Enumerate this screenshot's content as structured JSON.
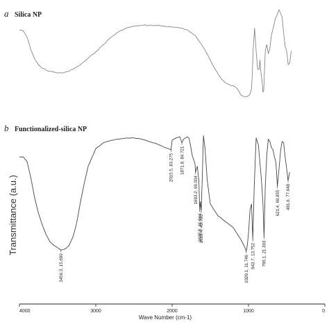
{
  "chart_data": [
    {
      "type": "line",
      "panel_letter": "a",
      "title": "Silica NP",
      "xlabel": "Wave Number (cm-1)",
      "ylabel": "Transmittance (a.u.)",
      "xlim": [
        4000,
        0
      ],
      "x_ticks": [
        4000,
        3000,
        2000,
        1000,
        0
      ],
      "series": [
        {
          "x": [
            4000,
            3950,
            3900,
            3850,
            3800,
            3750,
            3700,
            3650,
            3600,
            3550,
            3500,
            3450,
            3400,
            3350,
            3300,
            3200,
            3100,
            3000,
            2900,
            2800,
            2700,
            2600,
            2500,
            2400,
            2300,
            2200,
            2100,
            2000,
            1900,
            1800,
            1750,
            1700,
            1650,
            1600,
            1550,
            1500,
            1450,
            1400,
            1350,
            1300,
            1250,
            1200,
            1150,
            1100,
            1080,
            1050,
            1000,
            980,
            960,
            950,
            940,
            920,
            900,
            880,
            860,
            850,
            840,
            820,
            810,
            800,
            790,
            780,
            760,
            740,
            720,
            700,
            650,
            600,
            560,
            540,
            520,
            500,
            480,
            460,
            440
          ],
          "y": [
            0.78,
            0.77,
            0.7,
            0.56,
            0.46,
            0.4,
            0.36,
            0.34,
            0.33,
            0.32,
            0.31,
            0.31,
            0.32,
            0.33,
            0.35,
            0.4,
            0.47,
            0.54,
            0.62,
            0.7,
            0.76,
            0.8,
            0.82,
            0.83,
            0.83,
            0.83,
            0.82,
            0.81,
            0.8,
            0.78,
            0.75,
            0.72,
            0.66,
            0.6,
            0.53,
            0.45,
            0.37,
            0.3,
            0.24,
            0.2,
            0.18,
            0.17,
            0.14,
            0.07,
            0.06,
            0.05,
            0.06,
            0.08,
            0.14,
            0.3,
            0.55,
            0.8,
            0.55,
            0.35,
            0.35,
            0.45,
            0.34,
            0.2,
            0.1,
            0.12,
            0.35,
            0.55,
            0.62,
            0.52,
            0.58,
            0.72,
            0.9,
            1.0,
            0.92,
            0.75,
            0.6,
            0.55,
            0.4,
            0.42,
            0.55
          ]
        }
      ]
    },
    {
      "type": "line",
      "panel_letter": "b",
      "title": "Functionalized-silica NP",
      "xlabel": "Wave Number (cm-1)",
      "ylabel": "Transmittance (a.u.)",
      "xlim": [
        4000,
        0
      ],
      "x_ticks": [
        4000,
        3000,
        2000,
        1000,
        0
      ],
      "series": [
        {
          "x": [
            4000,
            3950,
            3900,
            3850,
            3800,
            3750,
            3700,
            3650,
            3600,
            3550,
            3500,
            3456.3,
            3400,
            3350,
            3300,
            3250,
            3200,
            3150,
            3100,
            3000,
            2900,
            2800,
            2700,
            2600,
            2500,
            2400,
            2300,
            2200,
            2100,
            2050,
            2015.5,
            2000,
            1950,
            1900,
            1871.8,
            1850,
            1800,
            1780,
            1760,
            1740,
            1720,
            1700,
            1693.2,
            1670,
            1650,
            1638.8,
            1630,
            1619.4,
            1605,
            1590,
            1570,
            1540,
            1500,
            1400,
            1300,
            1200,
            1150,
            1100,
            1060,
            1040,
            1029.1,
            1015,
            1000,
            980,
            960,
            943.7,
            925,
            900,
            870,
            850,
            830,
            810,
            796.1,
            780,
            760,
            740,
            720,
            700,
            680,
            660,
            640,
            621.4,
            600,
            580,
            560,
            540,
            520,
            500,
            481.6,
            460
          ],
          "y": [
            0.8,
            0.8,
            0.76,
            0.62,
            0.45,
            0.32,
            0.22,
            0.14,
            0.08,
            0.05,
            0.03,
            0.01,
            0.02,
            0.05,
            0.12,
            0.24,
            0.42,
            0.58,
            0.72,
            0.87,
            0.92,
            0.94,
            0.95,
            0.96,
            0.96,
            0.95,
            0.93,
            0.91,
            0.88,
            0.87,
            0.86,
            0.94,
            0.96,
            0.97,
            0.92,
            0.95,
            0.97,
            0.96,
            0.9,
            0.82,
            0.78,
            0.74,
            0.67,
            0.72,
            0.6,
            0.35,
            0.42,
            0.34,
            0.62,
            0.98,
            0.88,
            0.6,
            0.4,
            0.3,
            0.25,
            0.2,
            0.15,
            0.1,
            0.05,
            0.02,
            0.0,
            0.05,
            0.15,
            0.35,
            0.4,
            0.1,
            0.55,
            0.96,
            0.9,
            0.75,
            0.6,
            0.4,
            0.12,
            0.55,
            0.82,
            0.95,
            0.93,
            0.88,
            0.86,
            0.8,
            0.75,
            0.55,
            0.7,
            0.85,
            0.93,
            0.92,
            0.8,
            0.7,
            0.6,
            0.67
          ]
        }
      ],
      "annotations": [
        {
          "x": 3456.3,
          "text": "3456.3, 15.690"
        },
        {
          "x": 2015.5,
          "text": "2015.5, 83.275"
        },
        {
          "x": 1871.8,
          "text": "1871.8, 84.721"
        },
        {
          "x": 1693.2,
          "text": "1693.2, 69.034"
        },
        {
          "x": 1638.8,
          "text": "1638.8, 41.964"
        },
        {
          "x": 1619.4,
          "text": "1619.4, 40.700"
        },
        {
          "x": 1029.1,
          "text": "1029.1, 11.746"
        },
        {
          "x": 943.7,
          "text": "943.7, 13.752"
        },
        {
          "x": 796.1,
          "text": "796.1, 21.303"
        },
        {
          "x": 621.4,
          "text": "621.4, 69.855"
        },
        {
          "x": 481.6,
          "text": "481.6, 77.648"
        }
      ]
    }
  ]
}
